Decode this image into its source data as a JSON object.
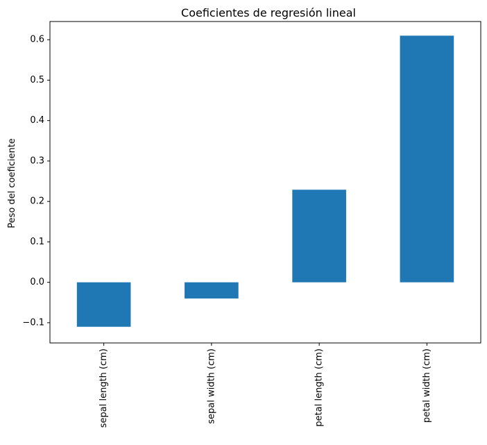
{
  "chart_data": {
    "type": "bar",
    "title": "Coeficientes de regresión lineal",
    "xlabel": "",
    "ylabel": "Peso del coeficiente",
    "categories": [
      "sepal length (cm)",
      "sepal width (cm)",
      "petal length (cm)",
      "petal width (cm)"
    ],
    "values": [
      -0.11,
      -0.04,
      0.229,
      0.61
    ],
    "ylim": [
      -0.15,
      0.645
    ],
    "yticks": [
      -0.1,
      0.0,
      0.1,
      0.2,
      0.3,
      0.4,
      0.5,
      0.6
    ],
    "ytick_labels": [
      "−0.1",
      "0.0",
      "0.1",
      "0.2",
      "0.3",
      "0.4",
      "0.5",
      "0.6"
    ],
    "bar_color": "#1f77b4",
    "grid": false,
    "legend": "none"
  }
}
